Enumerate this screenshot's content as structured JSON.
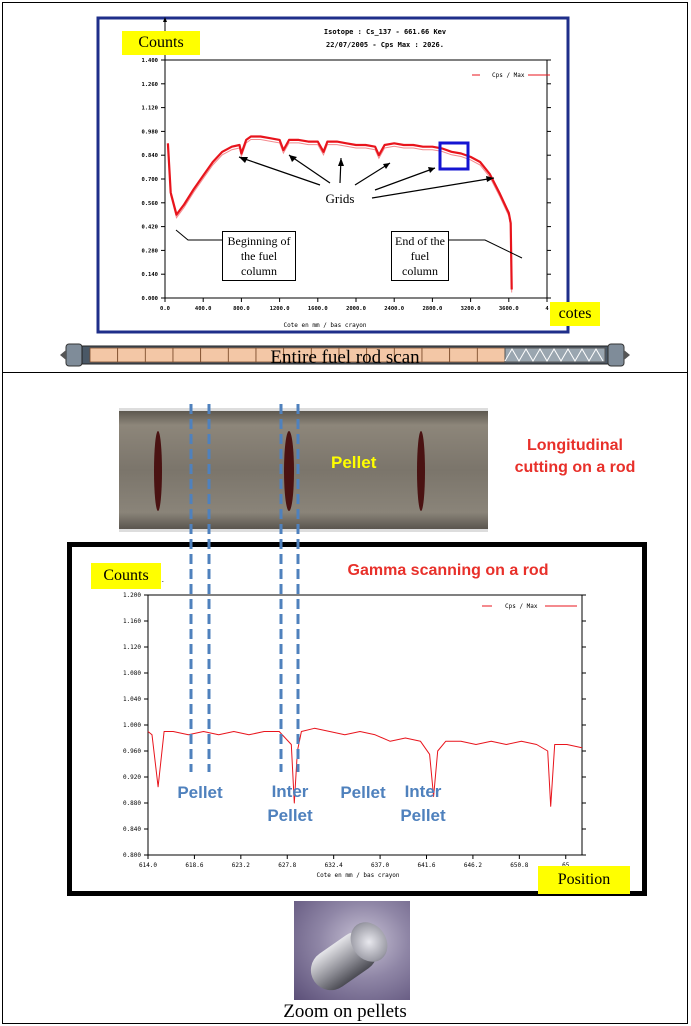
{
  "top_chart": {
    "header_line1": "Isotope : Cs_137 - 661.66 Kev",
    "header_line2": "22/07/2005 - Cps Max : 2026.",
    "ylabel_tag": "Counts",
    "xlabel_tag": "cotes",
    "legend": "Cps / Max",
    "xlabel": "Cote en mm / bas crayon",
    "yticks": [
      "0.000",
      "0.140",
      "0.280",
      "0.420",
      "0.560",
      "0.700",
      "0.840",
      "0.980",
      "1.120",
      "1.260",
      "1.400"
    ],
    "xticks": [
      "0.0",
      "400.0",
      "800.0",
      "1200.0",
      "1600.0",
      "2000.0",
      "2400.0",
      "2800.0",
      "3200.0",
      "3600.0",
      "4"
    ],
    "annotation_grids": "Grids",
    "annotation_begin": "Beginning of the fuel column",
    "annotation_end": "End of the fuel column",
    "colors": {
      "frame": "#1f2f8a",
      "line": "#e8141c",
      "highlight": "#1414d2",
      "tag": "#ffff00"
    }
  },
  "rod_caption": "Entire fuel rod scan",
  "pellet_photo": {
    "label": "Pellet",
    "side_label": "Longitudinal cutting on a rod"
  },
  "bottom_chart": {
    "title": "Gamma scanning on a rod",
    "ylabel_tag": "Counts",
    "xlabel_tag": "Position",
    "legend": "Cps / Max",
    "xlabel": "Cote en mm / bas crayon",
    "yticks": [
      "0.800",
      "0.840",
      "0.880",
      "0.920",
      "0.960",
      "1.000",
      "1.040",
      "1.080",
      "1.120",
      "1.160",
      "1.200"
    ],
    "xticks": [
      "614.0",
      "618.6",
      "623.2",
      "627.8",
      "632.4",
      "637.0",
      "641.6",
      "646.2",
      "650.8",
      "65"
    ],
    "labels": {
      "pellet_1": "Pellet",
      "inter_pellet_1": "Inter Pellet",
      "pellet_2": "Pellet",
      "inter_pellet_2": "Inter Pellet"
    }
  },
  "zoom_caption": "Zoom on pellets",
  "chart_data": [
    {
      "type": "line",
      "series": [
        {
          "name": "Cps / Max",
          "color": "#e8141c",
          "x": [
            30,
            60,
            120,
            200,
            300,
            400,
            500,
            600,
            700,
            780,
            800,
            850,
            900,
            1000,
            1100,
            1200,
            1240,
            1300,
            1400,
            1500,
            1600,
            1660,
            1700,
            1800,
            1900,
            2000,
            2100,
            2200,
            2240,
            2300,
            2400,
            2500,
            2600,
            2700,
            2800,
            2900,
            3000,
            3100,
            3200,
            3300,
            3400,
            3500,
            3600,
            3620,
            3630
          ],
          "y": [
            0.91,
            0.62,
            0.49,
            0.55,
            0.64,
            0.72,
            0.8,
            0.86,
            0.89,
            0.9,
            0.85,
            0.93,
            0.95,
            0.95,
            0.94,
            0.93,
            0.87,
            0.93,
            0.93,
            0.92,
            0.92,
            0.86,
            0.92,
            0.92,
            0.91,
            0.9,
            0.9,
            0.89,
            0.84,
            0.9,
            0.91,
            0.9,
            0.9,
            0.89,
            0.89,
            0.88,
            0.86,
            0.85,
            0.83,
            0.8,
            0.73,
            0.62,
            0.5,
            0.44,
            0.05
          ]
        }
      ],
      "xlabel": "Cote en mm / bas crayon",
      "xlim": [
        0,
        4000
      ],
      "ylim": [
        0,
        1.4
      ]
    },
    {
      "type": "line",
      "series": [
        {
          "name": "Cps / Max",
          "color": "#e8141c",
          "x": [
            614.0,
            614.4,
            615.0,
            615.6,
            616.5,
            618.0,
            619.5,
            621.0,
            622.5,
            624.0,
            625.5,
            627.0,
            628.2,
            628.5,
            628.8,
            629.2,
            630.5,
            632.0,
            633.5,
            635.0,
            636.5,
            638.0,
            639.5,
            641.0,
            641.9,
            642.3,
            642.7,
            643.5,
            645.0,
            646.5,
            648.0,
            649.5,
            651.0,
            652.5,
            653.6,
            653.9,
            654.3,
            655.5,
            657.0
          ],
          "y": [
            0.99,
            0.985,
            0.905,
            0.99,
            0.99,
            0.985,
            0.99,
            0.985,
            0.99,
            0.985,
            0.99,
            0.99,
            0.97,
            0.88,
            0.96,
            0.99,
            0.995,
            0.99,
            0.985,
            0.99,
            0.985,
            0.975,
            0.98,
            0.975,
            0.955,
            0.89,
            0.96,
            0.975,
            0.975,
            0.97,
            0.975,
            0.97,
            0.975,
            0.97,
            0.96,
            0.875,
            0.97,
            0.97,
            0.965
          ]
        }
      ],
      "xlabel": "Cote en mm / bas crayon",
      "xlim": [
        614.0,
        657.0
      ],
      "ylim": [
        0.8,
        1.2
      ]
    }
  ]
}
